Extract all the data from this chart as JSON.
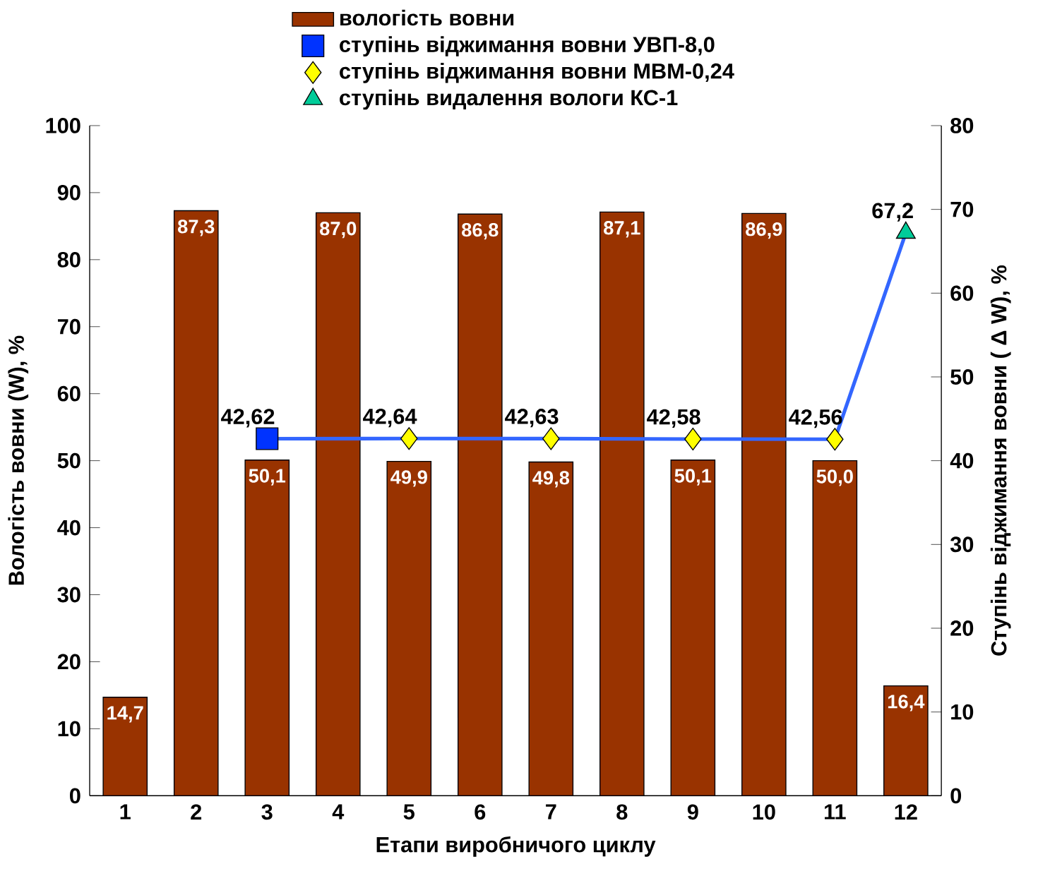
{
  "chart_data": {
    "type": "bar",
    "categories": [
      "1",
      "2",
      "3",
      "4",
      "5",
      "6",
      "7",
      "8",
      "9",
      "10",
      "11",
      "12"
    ],
    "xlabel": "Етапи виробничого циклу",
    "ylabel": "Вологість вовни (W), %",
    "y2label": "Ступінь віджимання вовни ( Δ W), %",
    "ylim": [
      0,
      100
    ],
    "yticks": [
      0,
      10,
      20,
      30,
      40,
      50,
      60,
      70,
      80,
      90,
      100
    ],
    "y2lim": [
      0,
      80
    ],
    "y2ticks": [
      0,
      10,
      20,
      30,
      40,
      50,
      60,
      70,
      80
    ],
    "legend": "top",
    "grid": false,
    "series": [
      {
        "name": "вологість вовни",
        "color": "#993300",
        "values": [
          14.7,
          87.3,
          50.1,
          87.0,
          49.9,
          86.8,
          49.8,
          87.1,
          50.1,
          86.9,
          50.0,
          16.4
        ],
        "value_labels": [
          "14,7",
          "87,3",
          "50,1",
          "87,0",
          "49,9",
          "86,8",
          "49,8",
          "87,1",
          "50,1",
          "86,9",
          "50,0",
          "16,4"
        ]
      },
      {
        "type": "line",
        "axis": "y2",
        "color": "#3366ff",
        "marker": "none",
        "values": [
          null,
          null,
          42.62,
          null,
          42.64,
          null,
          42.63,
          null,
          42.58,
          null,
          42.56,
          67.2
        ]
      },
      {
        "type": "scatter",
        "axis": "y2",
        "name": "ступінь віджимання вовни УВП-8,0",
        "color": "#0033ff",
        "marker": "square",
        "values": [
          null,
          null,
          42.62,
          null,
          null,
          null,
          null,
          null,
          null,
          null,
          null,
          null
        ],
        "value_labels": [
          null,
          null,
          "42,62",
          null,
          null,
          null,
          null,
          null,
          null,
          null,
          null,
          null
        ]
      },
      {
        "type": "scatter",
        "axis": "y2",
        "name": "ступінь віджимання вовни МВМ-0,24",
        "color": "#ffff00",
        "marker": "diamond",
        "values": [
          null,
          null,
          null,
          null,
          42.64,
          null,
          42.63,
          null,
          42.58,
          null,
          42.56,
          null
        ],
        "value_labels": [
          null,
          null,
          null,
          null,
          "42,64",
          null,
          "42,63",
          null,
          "42,58",
          null,
          "42,56",
          null
        ]
      },
      {
        "type": "scatter",
        "axis": "y2",
        "name": "ступінь видалення вологи КС-1",
        "color": "#00cc99",
        "marker": "triangle",
        "values": [
          null,
          null,
          null,
          null,
          null,
          null,
          null,
          null,
          null,
          null,
          null,
          67.2
        ],
        "value_labels": [
          null,
          null,
          null,
          null,
          null,
          null,
          null,
          null,
          null,
          null,
          null,
          "67,2"
        ]
      }
    ]
  }
}
